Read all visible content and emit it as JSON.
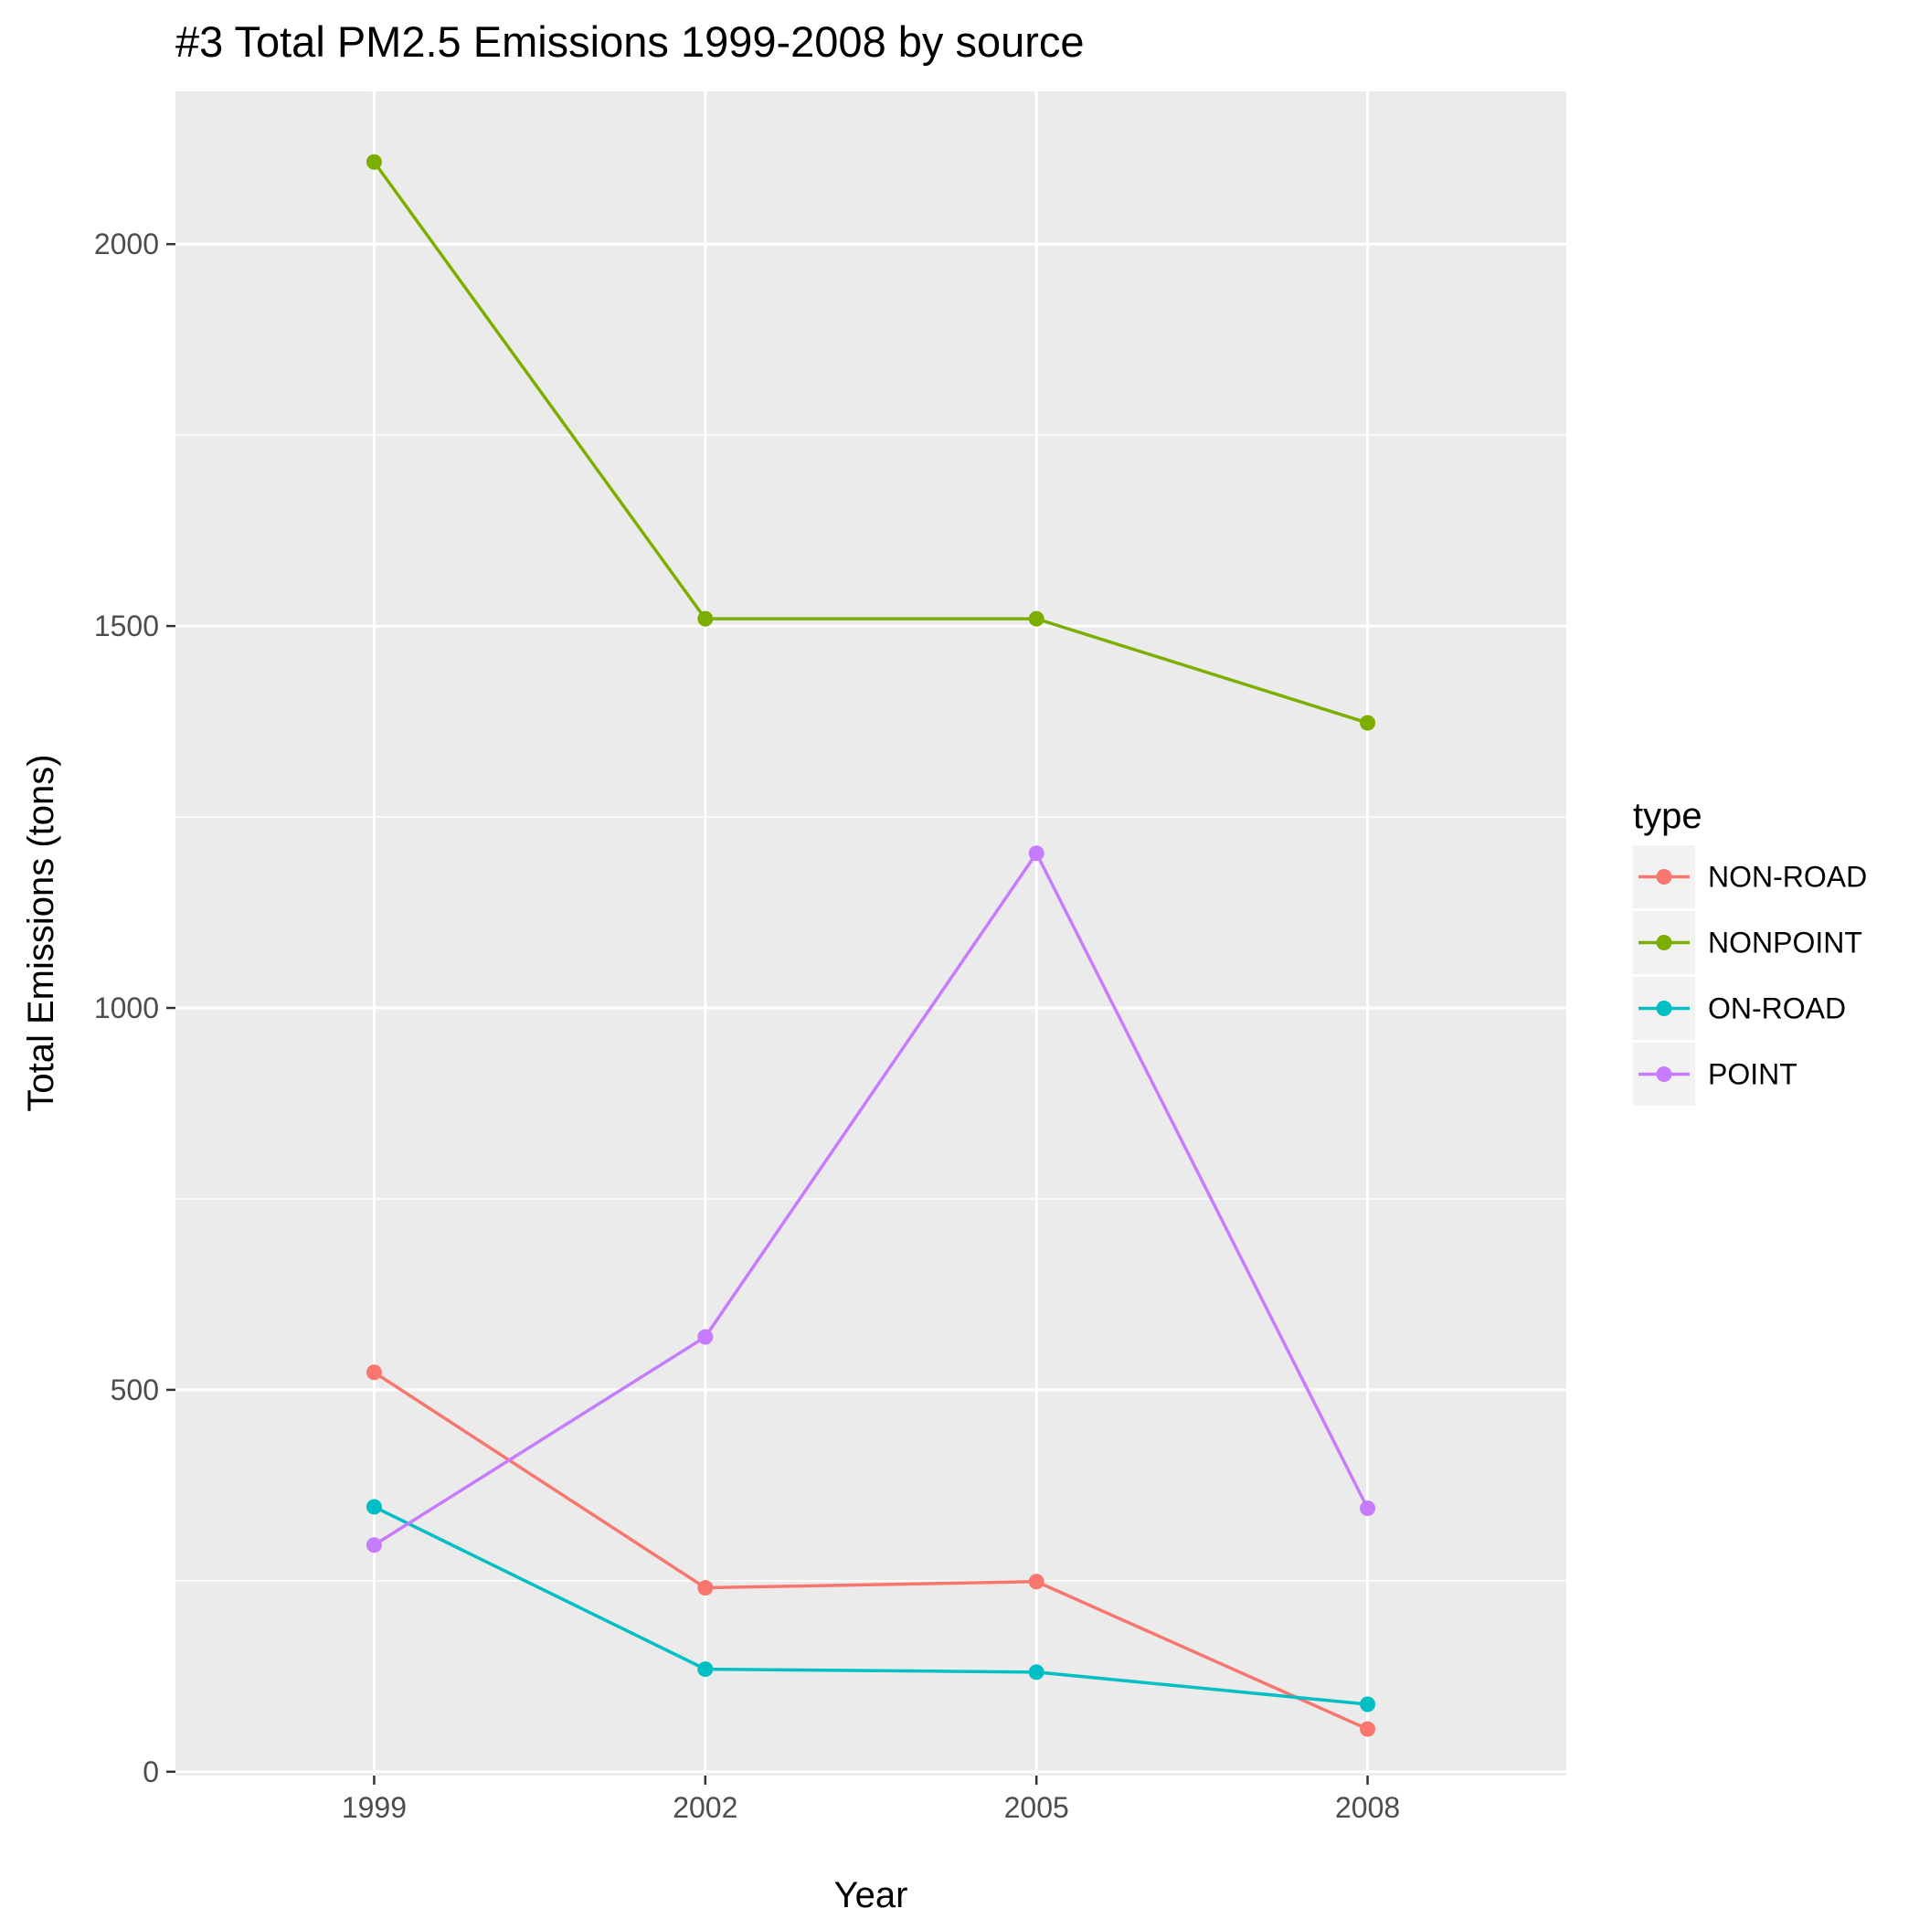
{
  "chart_data": {
    "type": "line",
    "title": "#3 Total PM2.5 Emissions 1999-2008 by source",
    "xlabel": "Year",
    "ylabel": "Total Emissions (tons)",
    "x": [
      1999,
      2002,
      2005,
      2008
    ],
    "x_tick_labels": [
      "1999",
      "2002",
      "2005",
      "2008"
    ],
    "xlim": [
      1997.2,
      2009.8
    ],
    "ylim": [
      -5,
      2200
    ],
    "y_ticks": [
      0,
      500,
      1000,
      1500,
      2000
    ],
    "y_tick_labels": [
      "0",
      "500",
      "1000",
      "1500",
      "2000"
    ],
    "y_minor_ticks": [
      250,
      750,
      1250,
      1750
    ],
    "grid": true,
    "background": "#ebebeb",
    "legend": {
      "title": "type",
      "position": "right"
    },
    "series": [
      {
        "name": "NON-ROAD",
        "color": "#f8766d",
        "values": [
          522.9,
          240.8,
          248.9,
          55.8
        ]
      },
      {
        "name": "NONPOINT",
        "color": "#7cae00",
        "values": [
          2107.6,
          1509.5,
          1509.5,
          1373.2
        ]
      },
      {
        "name": "ON-ROAD",
        "color": "#00bfc4",
        "values": [
          346.8,
          134.3,
          130.4,
          88.3
        ]
      },
      {
        "name": "POINT",
        "color": "#c77cff",
        "values": [
          296.8,
          569.3,
          1202.5,
          344.98
        ]
      }
    ]
  }
}
